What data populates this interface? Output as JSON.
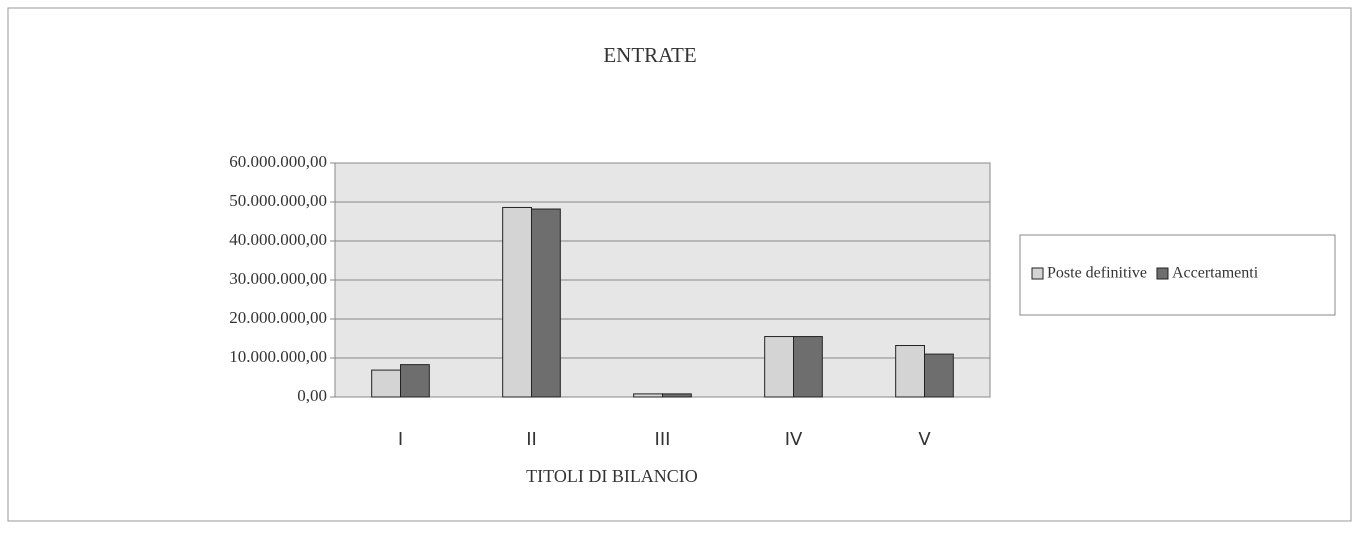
{
  "chart_data": {
    "type": "bar",
    "title": "ENTRATE",
    "x_label": "TITOLI DI BILANCIO",
    "categories": [
      "I",
      "II",
      "III",
      "IV",
      "V"
    ],
    "series": [
      {
        "name": "Poste definitive",
        "color": "#d4d4d4",
        "values": [
          6900000,
          48600000,
          800000,
          15500000,
          13200000
        ]
      },
      {
        "name": "Accertamenti",
        "color": "#6e6e6e",
        "values": [
          8300000,
          48200000,
          800000,
          15500000,
          11000000
        ]
      }
    ],
    "ylim": [
      0,
      60000000
    ],
    "yticks": [
      {
        "value": 0,
        "label": "0,00"
      },
      {
        "value": 10000000,
        "label": "10.000.000,00"
      },
      {
        "value": 20000000,
        "label": "20.000.000,00"
      },
      {
        "value": 30000000,
        "label": "30.000.000,00"
      },
      {
        "value": 40000000,
        "label": "40.000.000,00"
      },
      {
        "value": 50000000,
        "label": "50.000.000,00"
      },
      {
        "value": 60000000,
        "label": "60.000.000,00"
      }
    ],
    "grid": true,
    "legend": "right"
  }
}
